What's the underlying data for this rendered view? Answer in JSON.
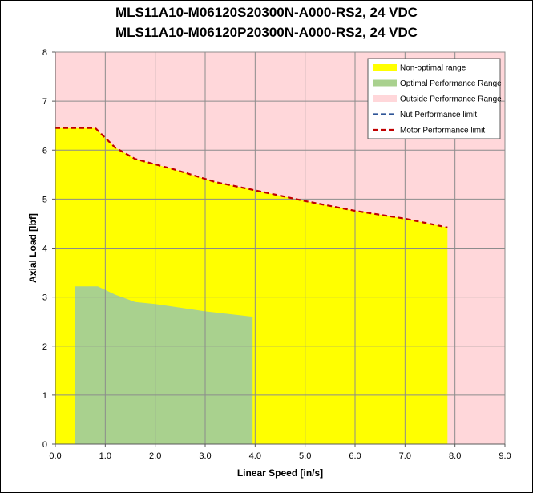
{
  "chart_data": {
    "type": "area",
    "title_lines": [
      "MLS11A10-M06120S20300N-A000-RS2, 24 VDC",
      "MLS11A10-M06120P20300N-A000-RS2, 24 VDC"
    ],
    "xlabel": "Linear Speed [in/s]",
    "ylabel": "Axial Load [lbf]",
    "xlim": [
      0,
      9
    ],
    "ylim": [
      0,
      8
    ],
    "x_ticks": [
      "0.0",
      "1.0",
      "2.0",
      "3.0",
      "4.0",
      "5.0",
      "6.0",
      "7.0",
      "8.0",
      "9.0"
    ],
    "y_ticks": [
      "0",
      "1",
      "2",
      "3",
      "4",
      "5",
      "6",
      "7",
      "8"
    ],
    "grid": true,
    "legend_position": "top-right",
    "series": [
      {
        "name": "Non-optimal range",
        "kind": "area",
        "color": "#FFFF00",
        "points": [
          [
            0,
            6.45
          ],
          [
            0.8,
            6.45
          ],
          [
            1.2,
            6.05
          ],
          [
            1.6,
            5.82
          ],
          [
            2.4,
            5.6
          ],
          [
            3.2,
            5.35
          ],
          [
            4.0,
            5.18
          ],
          [
            5.0,
            4.96
          ],
          [
            6.0,
            4.76
          ],
          [
            7.0,
            4.6
          ],
          [
            7.85,
            4.42
          ],
          [
            7.85,
            0
          ],
          [
            0,
            0
          ]
        ]
      },
      {
        "name": "Optimal Performance Range",
        "kind": "area",
        "color": "#A9D18E",
        "points": [
          [
            0.4,
            3.22
          ],
          [
            0.85,
            3.22
          ],
          [
            1.2,
            3.05
          ],
          [
            1.6,
            2.9
          ],
          [
            2.0,
            2.86
          ],
          [
            3.0,
            2.71
          ],
          [
            3.95,
            2.6
          ],
          [
            3.95,
            0
          ],
          [
            0.4,
            0
          ]
        ]
      },
      {
        "name": "Outside Performance Range",
        "kind": "area",
        "color": "#FFD7DA"
      },
      {
        "name": "Nut Performance limit",
        "kind": "dashed-line",
        "color": "#2F5597",
        "points": []
      },
      {
        "name": "Motor Performance limit",
        "kind": "dashed-line",
        "color": "#C00000",
        "points": [
          [
            0,
            6.45
          ],
          [
            0.8,
            6.45
          ],
          [
            1.2,
            6.05
          ],
          [
            1.6,
            5.82
          ],
          [
            2.4,
            5.6
          ],
          [
            3.2,
            5.35
          ],
          [
            4.0,
            5.18
          ],
          [
            5.0,
            4.96
          ],
          [
            6.0,
            4.76
          ],
          [
            7.0,
            4.6
          ],
          [
            7.85,
            4.42
          ]
        ]
      }
    ]
  },
  "colors": {
    "plot_background": "#FFD7DA",
    "gridline": "#8C8C8C"
  }
}
